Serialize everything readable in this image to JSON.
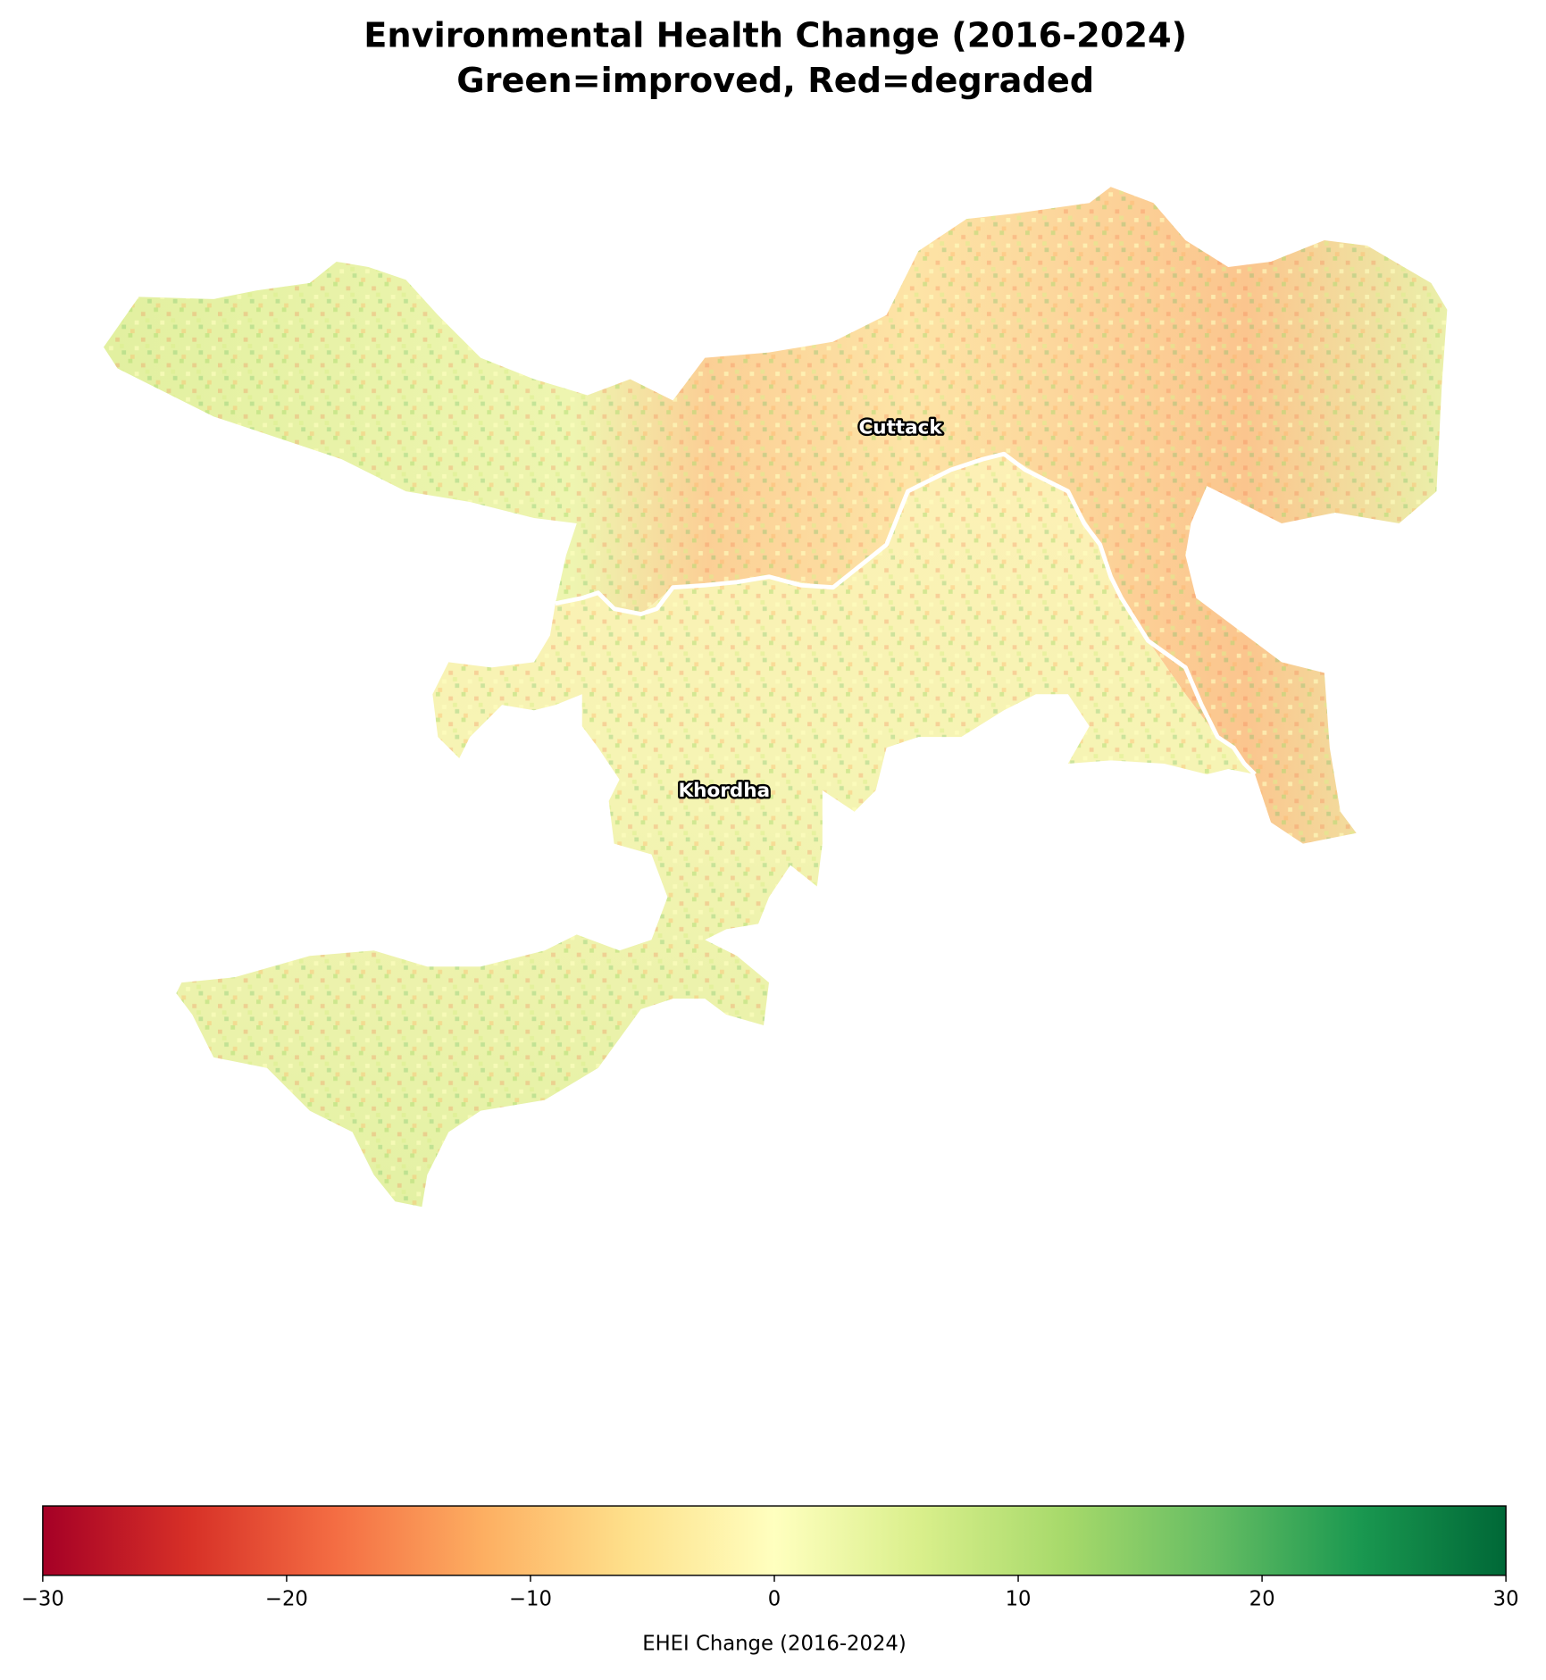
{
  "title": [
    "Environmental Health Change (2016-2024)",
    "Green=improved, Red=degraded"
  ],
  "regions": [
    {
      "label": "Cuttack"
    },
    {
      "label": "Khordha"
    }
  ],
  "colorbar": {
    "label": "EHEI Change (2016-2024)",
    "lim": [
      -30,
      30
    ],
    "ticks": [
      {
        "value": -30,
        "label": "−30"
      },
      {
        "value": -20,
        "label": "−20"
      },
      {
        "value": -10,
        "label": "−10"
      },
      0,
      10,
      20,
      30
    ],
    "colormap": [
      "#a50026",
      "#d73027",
      "#f46d43",
      "#fdae61",
      "#fee08b",
      "#ffffbf",
      "#d9ef8b",
      "#a6d96a",
      "#66bd63",
      "#1a9850",
      "#006837"
    ]
  }
}
